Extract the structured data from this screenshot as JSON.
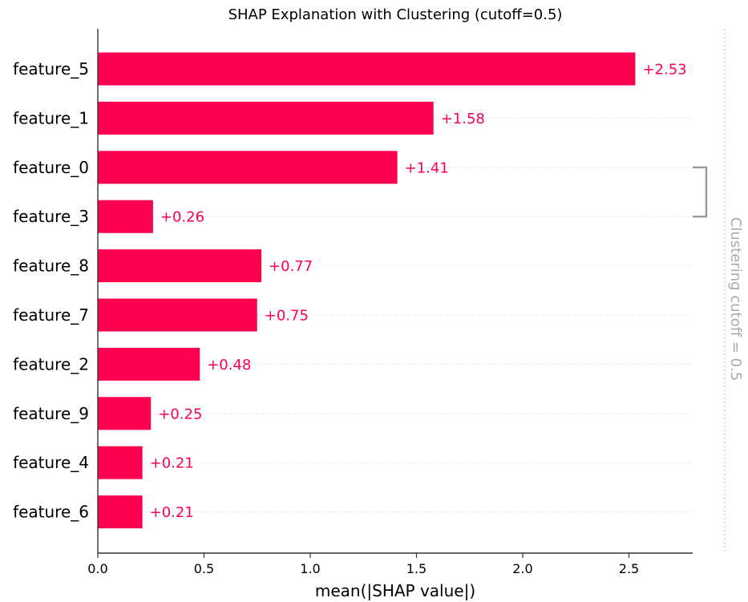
{
  "chart_data": {
    "type": "bar",
    "orientation": "horizontal",
    "title": "SHAP Explanation with Clustering (cutoff=0.5)",
    "xlabel": "mean(|SHAP value|)",
    "ylabel": "",
    "xlim": [
      0,
      2.8
    ],
    "xticks": [
      0.0,
      0.5,
      1.0,
      1.5,
      2.0,
      2.5
    ],
    "xtick_labels": [
      "0.0",
      "0.5",
      "1.0",
      "1.5",
      "2.0",
      "2.5"
    ],
    "categories": [
      "feature_5",
      "feature_1",
      "feature_0",
      "feature_3",
      "feature_8",
      "feature_7",
      "feature_2",
      "feature_9",
      "feature_4",
      "feature_6"
    ],
    "values": [
      2.53,
      1.58,
      1.41,
      0.26,
      0.77,
      0.75,
      0.48,
      0.25,
      0.21,
      0.21
    ],
    "value_labels": [
      "+2.53",
      "+1.58",
      "+1.41",
      "+0.26",
      "+0.77",
      "+0.75",
      "+0.48",
      "+0.25",
      "+0.21",
      "+0.21"
    ],
    "clusters": [
      [
        "feature_0",
        "feature_3"
      ]
    ],
    "cutoff_label": "Clustering cutoff = 0.5",
    "colors": {
      "bar": "#ff0051",
      "label": "#ff0051",
      "bracket": "#999999",
      "cutoff_text": "#aaaaaa",
      "axis": "#333333",
      "gridline": "#cccccc"
    }
  }
}
